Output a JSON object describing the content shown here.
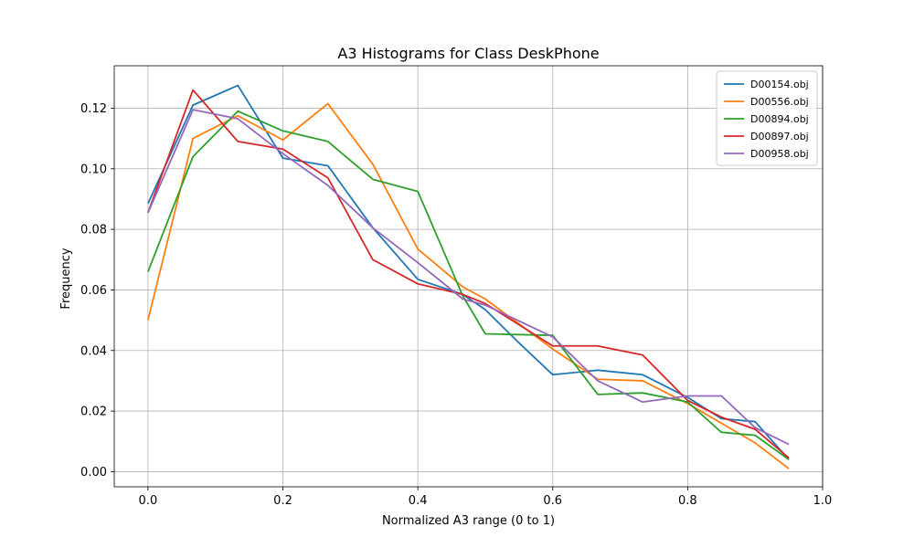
{
  "chart_data": {
    "type": "line",
    "title": "A3 Histograms for Class DeskPhone",
    "xlabel": "Normalized A3 range (0 to 1)",
    "ylabel": "Frequency",
    "xlim": [
      -0.05,
      1.0
    ],
    "ylim": [
      -0.005,
      0.134
    ],
    "xticks": [
      0.0,
      0.2,
      0.4,
      0.6,
      0.8,
      1.0
    ],
    "xtick_labels": [
      "0.0",
      "0.2",
      "0.4",
      "0.6",
      "0.8",
      "1.0"
    ],
    "yticks": [
      0.0,
      0.02,
      0.04,
      0.06,
      0.08,
      0.1,
      0.12
    ],
    "ytick_labels": [
      "0.00",
      "0.02",
      "0.04",
      "0.06",
      "0.08",
      "0.10",
      "0.12"
    ],
    "grid": true,
    "legend_position": "top-right",
    "x": [
      0.0,
      0.0667,
      0.1333,
      0.2,
      0.2667,
      0.3333,
      0.4,
      0.4667,
      0.5333,
      0.6,
      0.6667,
      0.7333,
      0.8,
      0.8667,
      0.9333,
      0.95
    ],
    "series": [
      {
        "name": "D00154.obj",
        "color": "#1f77b4",
        "x": [
          0.0,
          0.0667,
          0.1333,
          0.2,
          0.2667,
          0.3333,
          0.4,
          0.4667,
          0.5,
          0.55,
          0.6,
          0.6667,
          0.7333,
          0.8,
          0.85,
          0.9,
          0.95
        ],
        "values": [
          0.0885,
          0.121,
          0.1275,
          0.1035,
          0.101,
          0.0805,
          0.0635,
          0.0585,
          0.0535,
          0.0425,
          0.032,
          0.0335,
          0.032,
          0.0245,
          0.0175,
          0.0165,
          0.004
        ]
      },
      {
        "name": "D00556.obj",
        "color": "#ff7f0e",
        "x": [
          0.0,
          0.0667,
          0.1333,
          0.2,
          0.2667,
          0.3333,
          0.4,
          0.4667,
          0.5,
          0.6,
          0.6667,
          0.7333,
          0.8,
          0.9,
          0.95
        ],
        "values": [
          0.05,
          0.11,
          0.1175,
          0.1095,
          0.1215,
          0.1015,
          0.0735,
          0.061,
          0.057,
          0.0405,
          0.0305,
          0.03,
          0.0225,
          0.0095,
          0.001
        ]
      },
      {
        "name": "D00894.obj",
        "color": "#2ca02c",
        "x": [
          0.0,
          0.0667,
          0.1333,
          0.2,
          0.2667,
          0.3333,
          0.4,
          0.4667,
          0.5,
          0.6,
          0.6667,
          0.7333,
          0.8,
          0.85,
          0.9,
          0.95
        ],
        "values": [
          0.066,
          0.104,
          0.119,
          0.1125,
          0.109,
          0.0965,
          0.0925,
          0.058,
          0.0455,
          0.045,
          0.0255,
          0.026,
          0.023,
          0.013,
          0.012,
          0.004
        ]
      },
      {
        "name": "D00897.obj",
        "color": "#d62728",
        "x": [
          0.0,
          0.0667,
          0.1333,
          0.2,
          0.2667,
          0.3333,
          0.4,
          0.4667,
          0.5,
          0.6,
          0.6667,
          0.7333,
          0.8,
          0.85,
          0.9,
          0.95
        ],
        "values": [
          0.0855,
          0.126,
          0.109,
          0.1065,
          0.097,
          0.07,
          0.062,
          0.0585,
          0.0555,
          0.0415,
          0.0415,
          0.0385,
          0.0235,
          0.018,
          0.014,
          0.0045
        ]
      },
      {
        "name": "D00958.obj",
        "color": "#9467bd",
        "x": [
          0.0,
          0.0667,
          0.1333,
          0.2,
          0.2667,
          0.3333,
          0.4,
          0.4667,
          0.5,
          0.6,
          0.6667,
          0.7333,
          0.8,
          0.85,
          0.9,
          0.95
        ],
        "values": [
          0.0855,
          0.1195,
          0.1165,
          0.105,
          0.0945,
          0.0805,
          0.069,
          0.057,
          0.055,
          0.0445,
          0.03,
          0.023,
          0.025,
          0.025,
          0.0145,
          0.009
        ]
      }
    ]
  }
}
